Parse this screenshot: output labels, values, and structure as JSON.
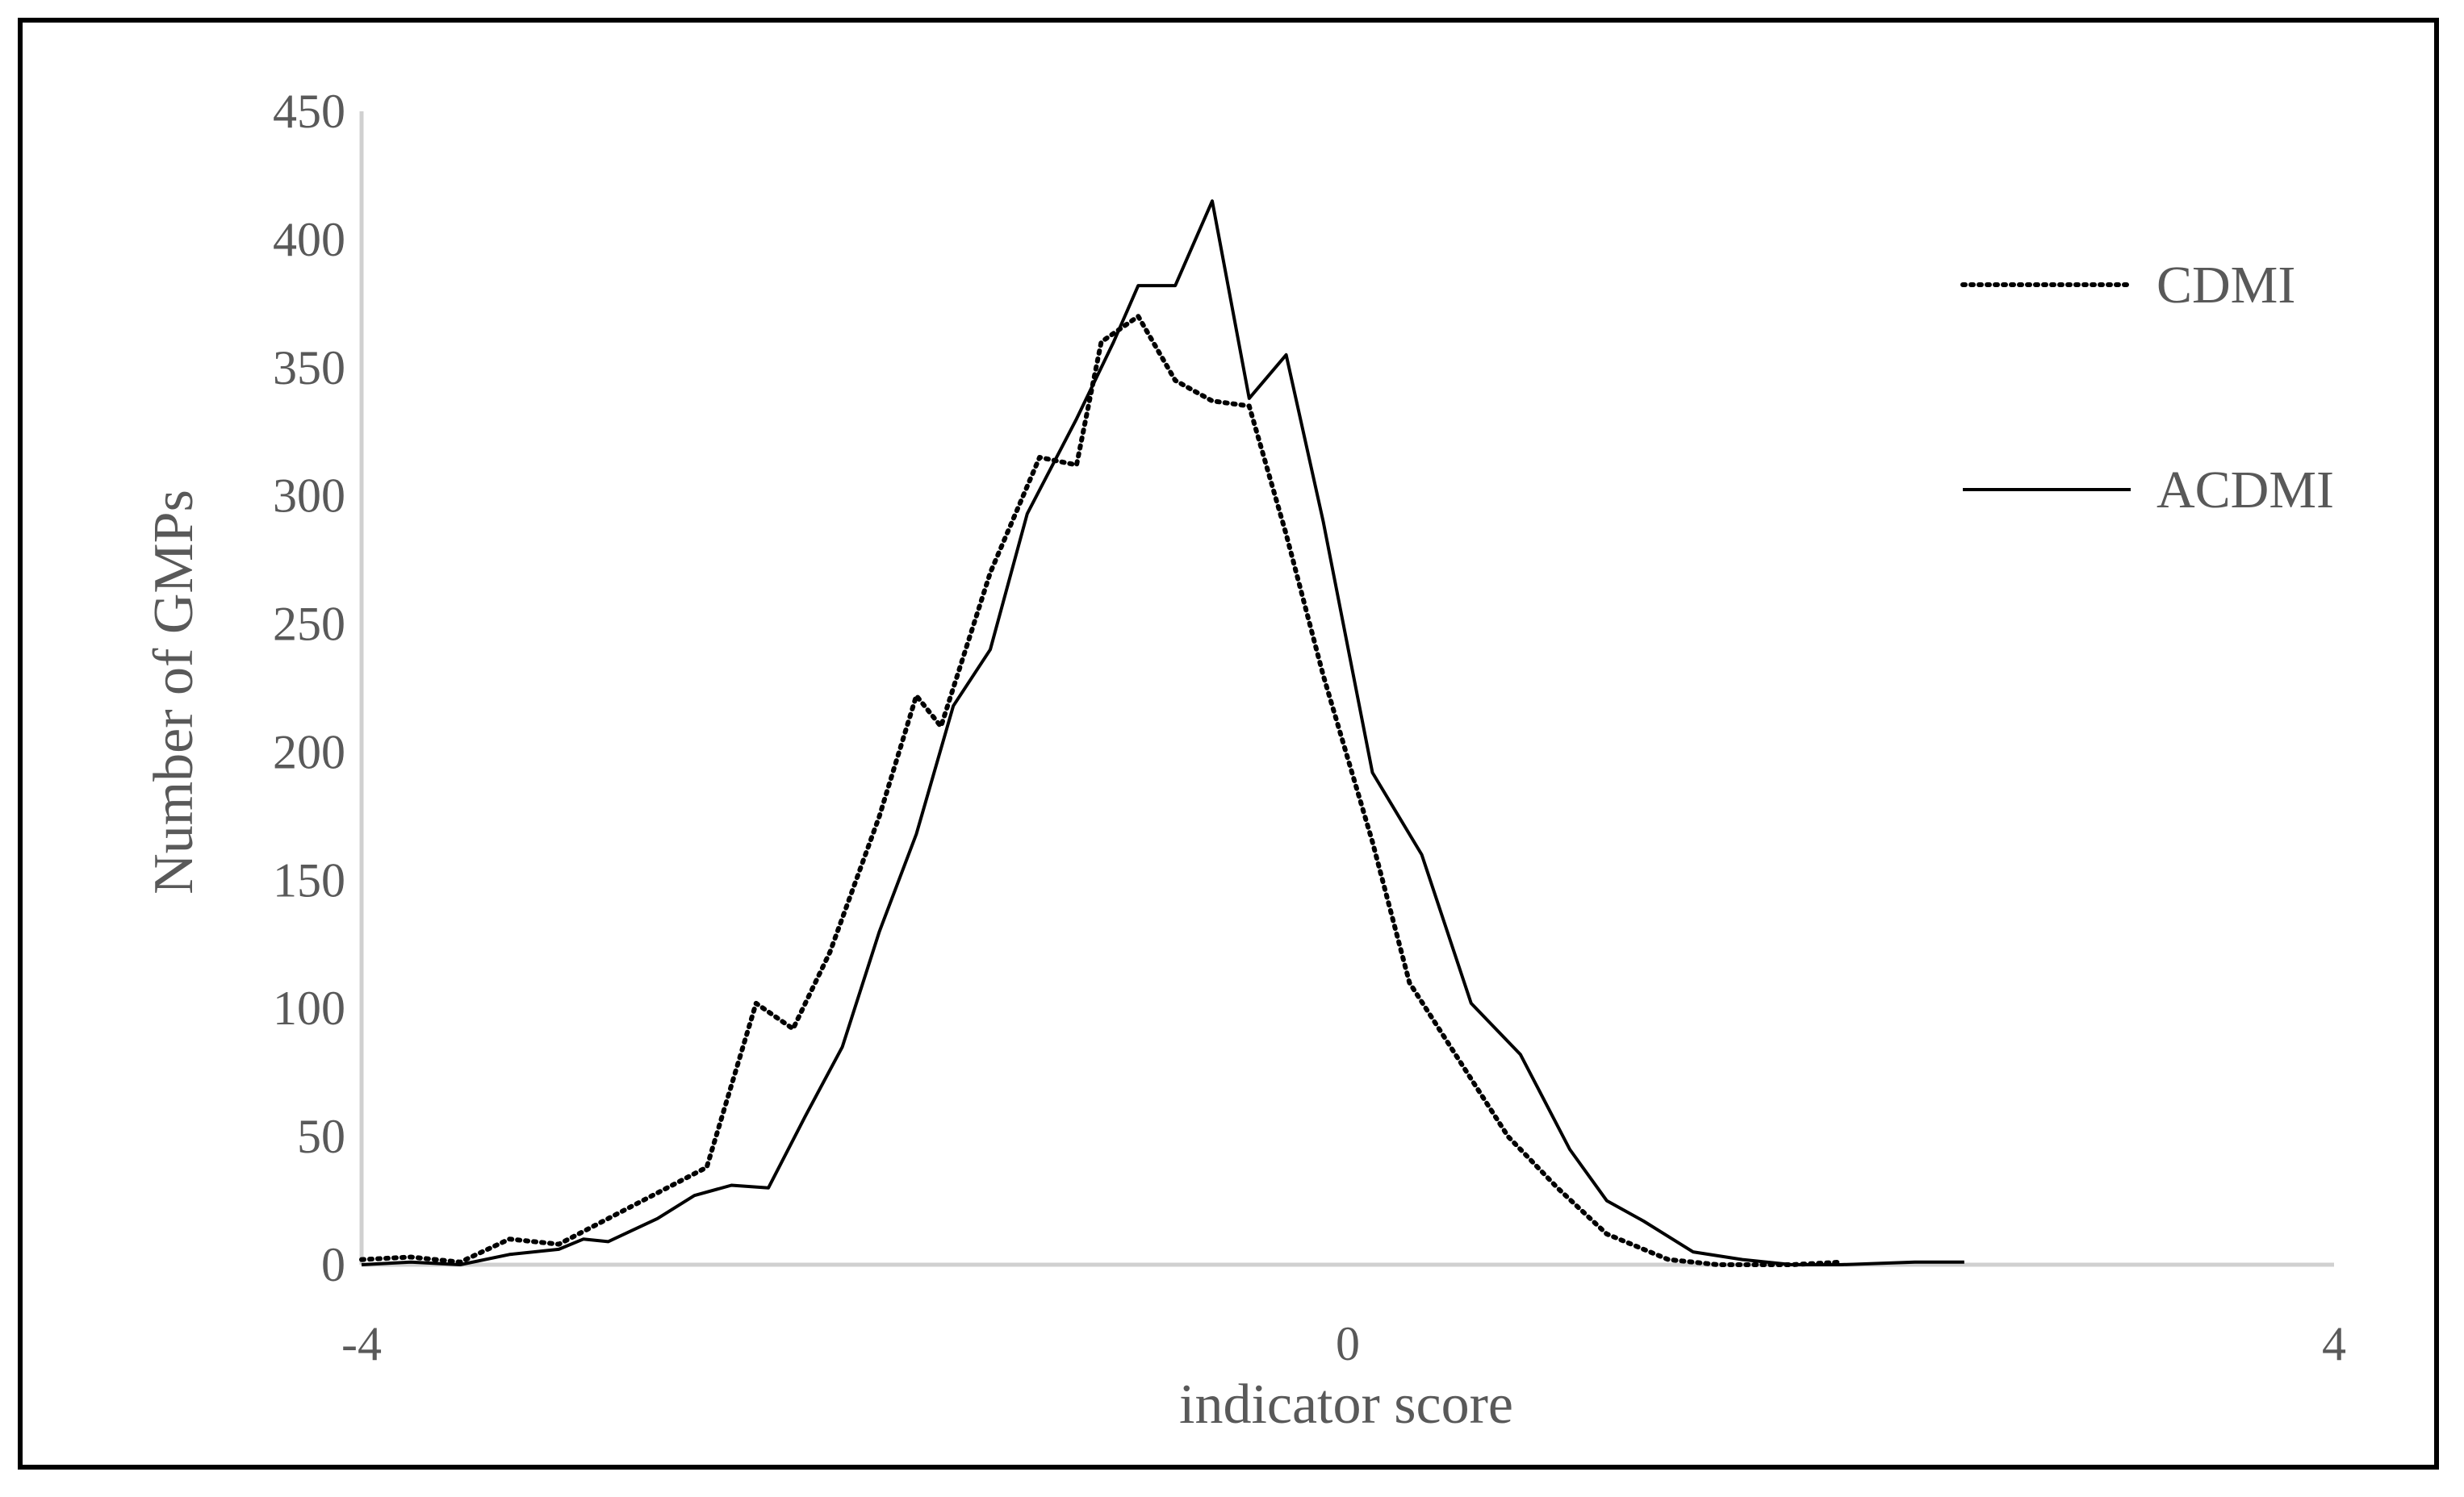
{
  "chart_data": {
    "type": "line",
    "xlabel": "indicator score",
    "ylabel": "Number of GMPs",
    "xlim": [
      -4,
      4
    ],
    "ylim": [
      0,
      450
    ],
    "x_ticks": [
      "-4",
      "0",
      "4"
    ],
    "y_ticks": [
      "0",
      "50",
      "100",
      "150",
      "200",
      "250",
      "300",
      "350",
      "400",
      "450"
    ],
    "legend_position": "top-right",
    "grid": false,
    "series": [
      {
        "name": "CDMI",
        "style": "dotted",
        "color": "#000000",
        "points": [
          [
            -4.0,
            2
          ],
          [
            -3.8,
            3
          ],
          [
            -3.6,
            1
          ],
          [
            -3.4,
            10
          ],
          [
            -3.2,
            8
          ],
          [
            -3.0,
            18
          ],
          [
            -2.8,
            28
          ],
          [
            -2.6,
            38
          ],
          [
            -2.4,
            102
          ],
          [
            -2.25,
            92
          ],
          [
            -2.1,
            122
          ],
          [
            -1.9,
            175
          ],
          [
            -1.75,
            222
          ],
          [
            -1.65,
            210
          ],
          [
            -1.45,
            270
          ],
          [
            -1.25,
            315
          ],
          [
            -1.1,
            312
          ],
          [
            -1.0,
            360
          ],
          [
            -0.85,
            370
          ],
          [
            -0.7,
            345
          ],
          [
            -0.55,
            337
          ],
          [
            -0.4,
            335
          ],
          [
            -0.25,
            285
          ],
          [
            -0.1,
            230
          ],
          [
            0.1,
            165
          ],
          [
            0.25,
            110
          ],
          [
            0.45,
            80
          ],
          [
            0.65,
            50
          ],
          [
            0.85,
            30
          ],
          [
            1.05,
            12
          ],
          [
            1.3,
            2
          ],
          [
            1.5,
            0
          ],
          [
            1.8,
            0
          ],
          [
            2.0,
            1
          ]
        ]
      },
      {
        "name": "ACDMI",
        "style": "solid",
        "color": "#000000",
        "points": [
          [
            -4.0,
            0
          ],
          [
            -3.8,
            1
          ],
          [
            -3.6,
            0
          ],
          [
            -3.4,
            4
          ],
          [
            -3.2,
            6
          ],
          [
            -3.1,
            10
          ],
          [
            -3.0,
            9
          ],
          [
            -2.8,
            18
          ],
          [
            -2.65,
            27
          ],
          [
            -2.5,
            31
          ],
          [
            -2.35,
            30
          ],
          [
            -2.2,
            58
          ],
          [
            -2.05,
            85
          ],
          [
            -1.9,
            130
          ],
          [
            -1.75,
            168
          ],
          [
            -1.6,
            218
          ],
          [
            -1.45,
            240
          ],
          [
            -1.3,
            293
          ],
          [
            -1.1,
            330
          ],
          [
            -0.95,
            360
          ],
          [
            -0.85,
            382
          ],
          [
            -0.7,
            382
          ],
          [
            -0.55,
            415
          ],
          [
            -0.4,
            338
          ],
          [
            -0.25,
            355
          ],
          [
            -0.1,
            290
          ],
          [
            0.1,
            192
          ],
          [
            0.3,
            160
          ],
          [
            0.5,
            102
          ],
          [
            0.7,
            82
          ],
          [
            0.9,
            45
          ],
          [
            1.05,
            25
          ],
          [
            1.2,
            17
          ],
          [
            1.4,
            5
          ],
          [
            1.6,
            2
          ],
          [
            1.8,
            0
          ],
          [
            2.0,
            0
          ],
          [
            2.3,
            1
          ],
          [
            2.5,
            1
          ]
        ]
      }
    ]
  }
}
